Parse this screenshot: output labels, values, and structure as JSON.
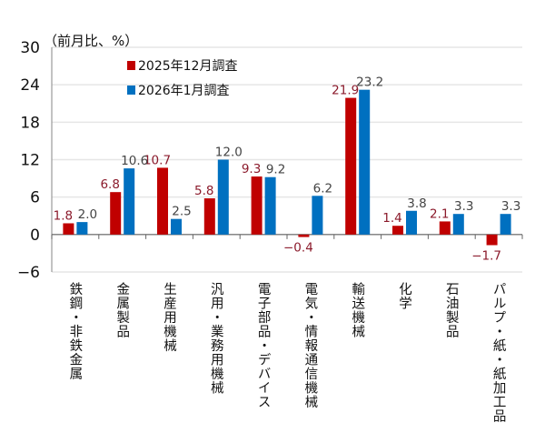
{
  "chart_data": {
    "type": "bar",
    "unit_label": "（前月比、%）",
    "categories": [
      "鉄鋼・非鉄金属",
      "金属製品",
      "生産用機械",
      "汎用・業務用機械",
      "電子部品・デバイス",
      "電気・情報通信機械",
      "輸送機械",
      "化学",
      "石油製品",
      "パルプ・紙・紙加工品"
    ],
    "series": [
      {
        "name": "2025年12月調査",
        "color": "#c00000",
        "label_color": "#8b1a2b",
        "values": [
          1.8,
          6.8,
          10.7,
          5.8,
          9.3,
          -0.4,
          21.9,
          1.4,
          2.1,
          -1.7
        ]
      },
      {
        "name": "2026年1月調査",
        "color": "#0070c0",
        "label_color": "#444444",
        "values": [
          2.0,
          10.6,
          2.5,
          12.0,
          9.2,
          6.2,
          23.2,
          3.8,
          3.3,
          3.3
        ]
      }
    ],
    "ylim": [
      -6,
      30
    ],
    "yticks": [
      -6,
      0,
      6,
      12,
      18,
      24,
      30
    ],
    "grid": true,
    "legend": "top-left"
  }
}
